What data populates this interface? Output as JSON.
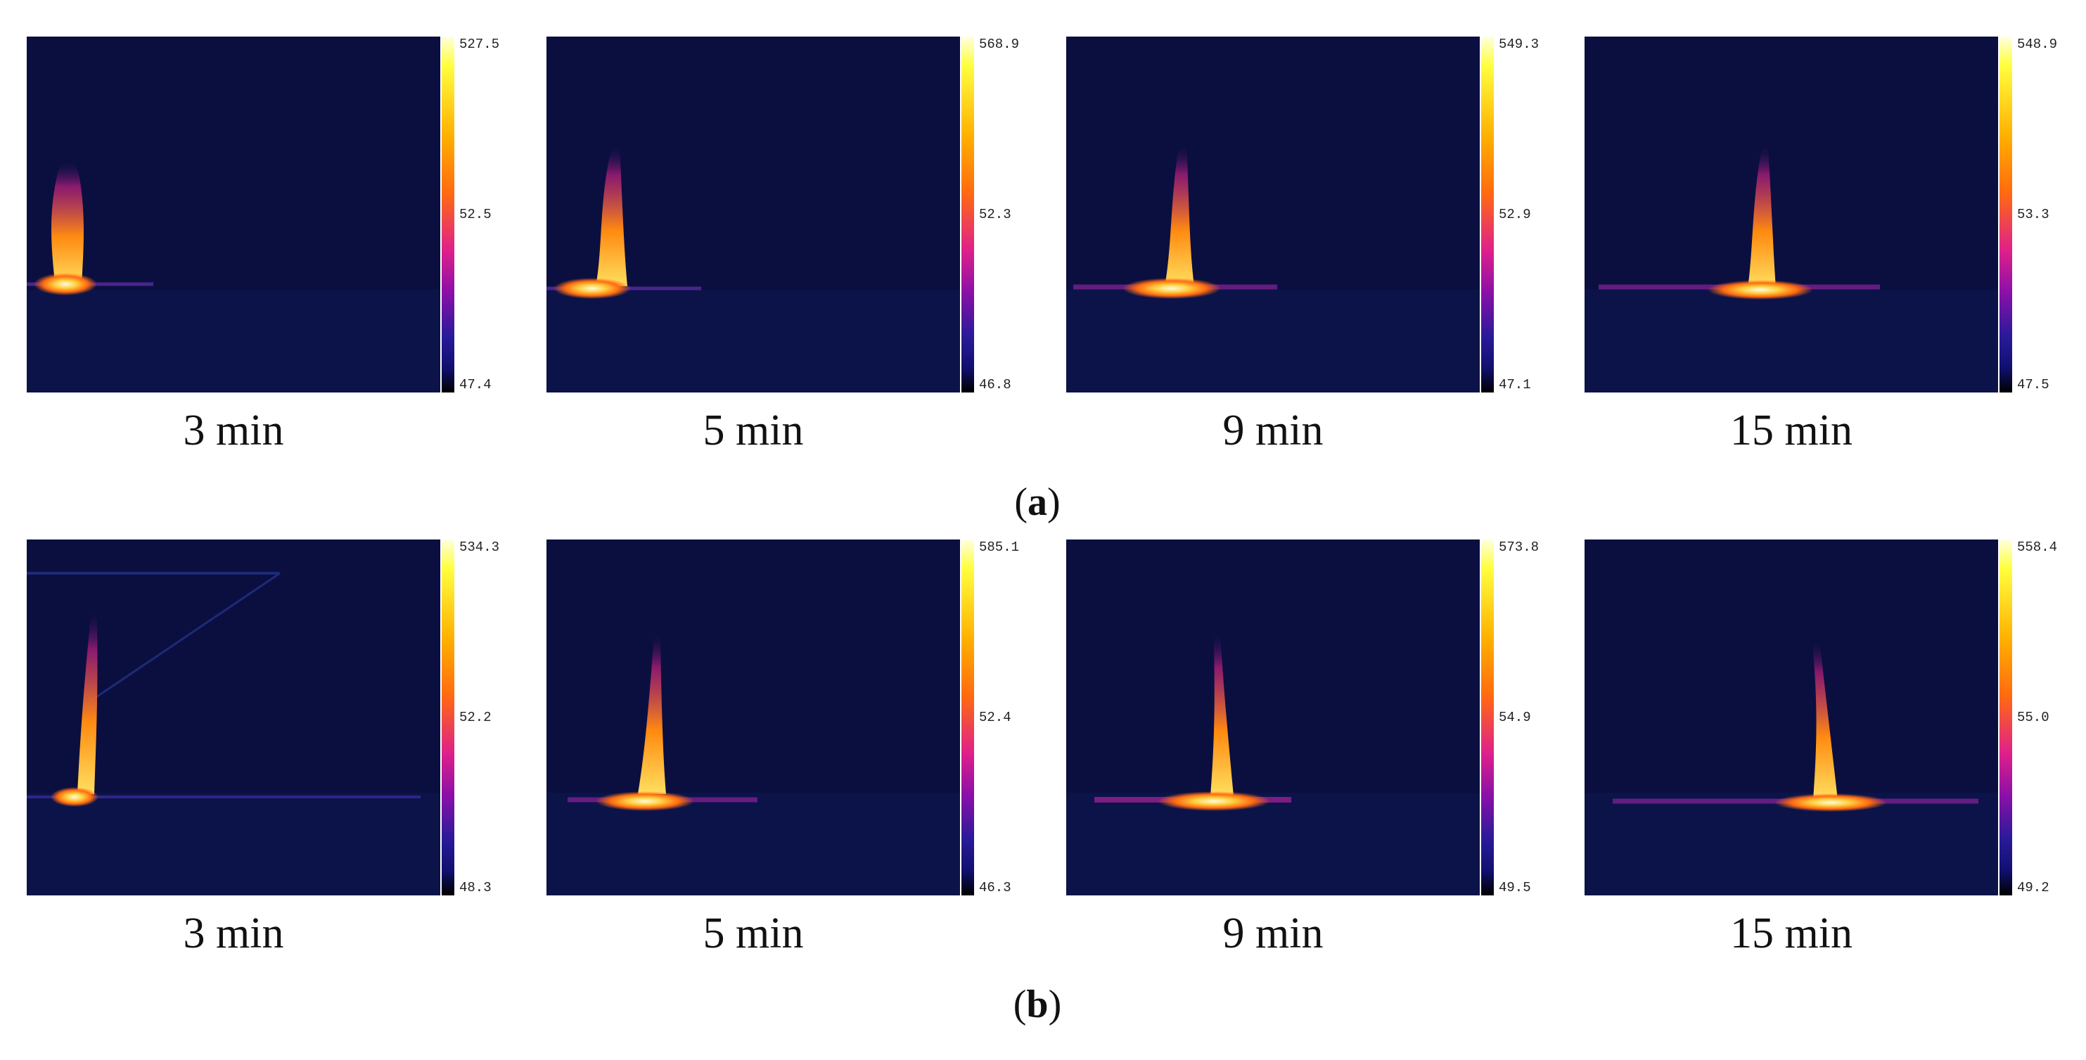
{
  "rows": [
    {
      "label_letter": "a",
      "panels": [
        {
          "caption": "3 min",
          "scale_max": "527.5",
          "scale_mid": "52.5",
          "scale_min": "47.4"
        },
        {
          "caption": "5 min",
          "scale_max": "568.9",
          "scale_mid": "52.3",
          "scale_min": "46.8"
        },
        {
          "caption": "9 min",
          "scale_max": "549.3",
          "scale_mid": "52.9",
          "scale_min": "47.1"
        },
        {
          "caption": "15 min",
          "scale_max": "548.9",
          "scale_mid": "53.3",
          "scale_min": "47.5"
        }
      ]
    },
    {
      "label_letter": "b",
      "panels": [
        {
          "caption": "3 min",
          "scale_max": "534.3",
          "scale_mid": "52.2",
          "scale_min": "48.3"
        },
        {
          "caption": "5 min",
          "scale_max": "585.1",
          "scale_mid": "52.4",
          "scale_min": "46.3"
        },
        {
          "caption": "9 min",
          "scale_max": "573.8",
          "scale_mid": "54.9",
          "scale_min": "49.5"
        },
        {
          "caption": "15 min",
          "scale_max": "558.4",
          "scale_mid": "55.0",
          "scale_min": "49.2"
        }
      ]
    }
  ],
  "colors": {
    "background": "#0a0e3a",
    "hot_core": "#fffbe0",
    "flame": "#ff9a1a"
  }
}
